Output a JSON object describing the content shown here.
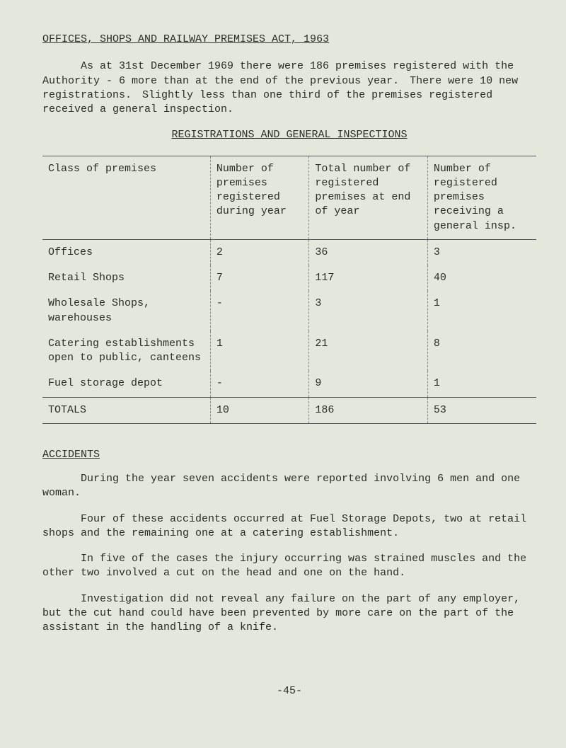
{
  "title": "OFFICES, SHOPS AND RAILWAY PREMISES ACT, 1963",
  "intro_para": "As at 31st December 1969 there were 186 premises registered with the Authority - 6 more than at the end of the previous year. There were 10 new registrations. Slightly less than one third of the premises registered received a general inspection.",
  "table_heading": "REGISTRATIONS AND GENERAL INSPECTIONS",
  "table": {
    "headers": {
      "c1": "Class of premises",
      "c2": "Number of premises registered during year",
      "c3": "Total number of registered premises at end of year",
      "c4": "Number of registered premises receiving a general insp."
    },
    "rows": [
      {
        "c1": "Offices",
        "c2": "2",
        "c3": "36",
        "c4": "3"
      },
      {
        "c1": "Retail Shops",
        "c2": "7",
        "c3": "117",
        "c4": "40"
      },
      {
        "c1": "Wholesale Shops, warehouses",
        "c2": "-",
        "c3": "3",
        "c4": "1"
      },
      {
        "c1": "Catering establishments open to public, canteens",
        "c2": "1",
        "c3": "21",
        "c4": "8"
      },
      {
        "c1": "Fuel storage depot",
        "c2": "-",
        "c3": "9",
        "c4": "1"
      }
    ],
    "totals": {
      "c1": "TOTALS",
      "c2": "10",
      "c3": "186",
      "c4": "53"
    }
  },
  "accidents_heading": "ACCIDENTS",
  "accidents_paras": {
    "p1": "During the year seven accidents were reported involving 6 men and one woman.",
    "p2": "Four of these accidents occurred at Fuel Storage Depots, two at retail shops and the remaining one at a catering establishment.",
    "p3": "In five of the cases the injury occurring was strained muscles and the other two involved a cut on the head and one on the hand.",
    "p4": "Investigation did not reveal any failure on the part of any employer, but the cut hand could have been prevented by more care on the part of the assistant in the handling of a knife."
  },
  "page_number": "-45-"
}
